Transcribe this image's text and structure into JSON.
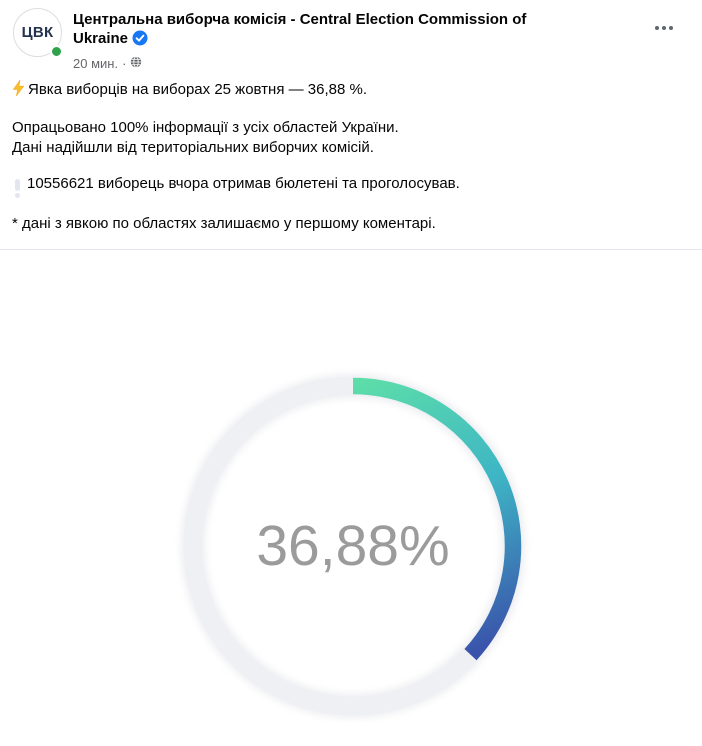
{
  "post": {
    "header": {
      "avatar_text": "ЦВК",
      "page_name": "Центральна виборча комісія - Central Election Commission of Ukraine",
      "verified": true,
      "timestamp": "20 мин.",
      "separator": "·",
      "privacy": "globe-public",
      "online_status": "online"
    },
    "body": {
      "lightning_emoji": "⚡",
      "line1": "Явка виборців на виборах 25 жовтня — 36,88 %.",
      "line2": "Опрацьовано 100% інформації з усіх областей України.",
      "line3": "Дані надійшли від територіальних виборчих комісій.",
      "exclamation_emoji": "❕",
      "line4": "10556621 виборець вчора отримав бюлетені та проголосував.",
      "line5": "* дані з явкою по областях залишаємо у першому коментарі."
    }
  },
  "chart_data": {
    "type": "donut",
    "value": 36.88,
    "max": 100,
    "label": "36,88%",
    "title": "Явка виборців на виборах 25 жовтня",
    "start_angle_deg": 0,
    "direction": "clockwise",
    "arc_gradient": [
      "#5CDDA9",
      "#3EB5C5",
      "#3A53AB"
    ],
    "track_color": "#EFF0F3",
    "label_color": "#9B9B9B"
  },
  "colors": {
    "verified_blue": "#1877F2",
    "online_green": "#31A24C",
    "text_primary": "#050505",
    "text_secondary": "#65676B",
    "divider": "#E4E6EB",
    "lightning_yellow": "#F9BE2E",
    "exclamation_gray": "#E3E6EE"
  }
}
